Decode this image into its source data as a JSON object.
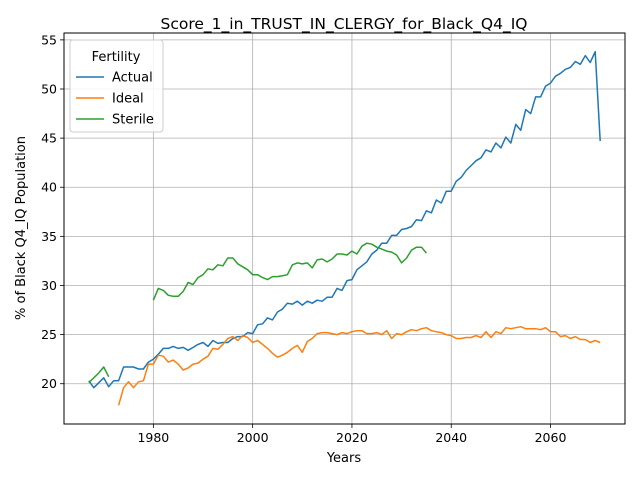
{
  "chart_data": {
    "type": "line",
    "title": "Score_1_in_TRUST_IN_CLERGY_for_Black_Q4_IQ",
    "xlabel": "Years",
    "ylabel": "% of Black Q4_IQ Population",
    "xlim": [
      1962,
      2075
    ],
    "ylim": [
      15.9,
      55.7
    ],
    "xticks": [
      1980,
      2000,
      2020,
      2040,
      2060
    ],
    "yticks": [
      20,
      25,
      30,
      35,
      40,
      45,
      50,
      55
    ],
    "grid": true,
    "legend": {
      "title": "Fertility",
      "placement": "top-left"
    },
    "series": [
      {
        "name": "Actual",
        "color": "#1f77b4",
        "x": [
          1967,
          1968,
          1969,
          1970,
          1971,
          1972,
          1973,
          1974,
          1975,
          1976,
          1977,
          1978,
          1979,
          1980,
          1981,
          1982,
          1983,
          1984,
          1985,
          1986,
          1987,
          1988,
          1989,
          1990,
          1991,
          1992,
          1993,
          1994,
          1995,
          1996,
          1997,
          1998,
          1999,
          2000,
          2001,
          2002,
          2003,
          2004,
          2005,
          2006,
          2007,
          2008,
          2009,
          2010,
          2011,
          2012,
          2013,
          2014,
          2015,
          2016,
          2017,
          2018,
          2019,
          2020,
          2021,
          2022,
          2023,
          2024,
          2025,
          2026,
          2027,
          2028,
          2029,
          2030,
          2031,
          2032,
          2033,
          2034,
          2035,
          2036,
          2037,
          2038,
          2039,
          2040,
          2041,
          2042,
          2043,
          2044,
          2045,
          2046,
          2047,
          2048,
          2049,
          2050,
          2051,
          2052,
          2053,
          2054,
          2055,
          2056,
          2057,
          2058,
          2059,
          2060,
          2061,
          2062,
          2063,
          2064,
          2065,
          2066,
          2067,
          2068,
          2069,
          2070
        ],
        "y": [
          20.3,
          19.6,
          20.1,
          20.6,
          19.7,
          20.3,
          20.3,
          21.7,
          21.7,
          21.7,
          21.5,
          21.5,
          22.2,
          22.5,
          23.0,
          23.6,
          23.6,
          23.8,
          23.6,
          23.7,
          23.4,
          23.7,
          24.0,
          24.2,
          23.8,
          24.4,
          24.1,
          24.2,
          24.2,
          24.6,
          24.8,
          24.8,
          25.2,
          25.1,
          26.0,
          26.1,
          26.7,
          26.5,
          27.3,
          27.6,
          28.2,
          28.1,
          28.4,
          28.0,
          28.4,
          28.2,
          28.5,
          28.4,
          28.8,
          28.8,
          29.7,
          29.5,
          30.5,
          30.6,
          31.6,
          32.0,
          32.4,
          33.2,
          33.6,
          34.3,
          34.3,
          35.1,
          35.1,
          35.7,
          35.8,
          36.0,
          36.7,
          36.6,
          37.6,
          37.4,
          38.7,
          38.4,
          39.6,
          39.6,
          40.6,
          41.0,
          41.7,
          42.2,
          42.7,
          43.0,
          43.8,
          43.6,
          44.5,
          44.0,
          45.1,
          44.5,
          46.4,
          45.8,
          47.9,
          47.5,
          49.2,
          49.2,
          50.3,
          50.6,
          51.3,
          51.6,
          52.0,
          52.2,
          52.8,
          52.5,
          53.4,
          52.7,
          53.8,
          44.7
        ]
      },
      {
        "name": "Ideal",
        "color": "#ff7f0e",
        "x": [
          1973,
          1974,
          1975,
          1976,
          1977,
          1978,
          1979,
          1980,
          1981,
          1982,
          1983,
          1984,
          1985,
          1986,
          1987,
          1988,
          1989,
          1990,
          1991,
          1992,
          1993,
          1994,
          1995,
          1996,
          1997,
          1998,
          1999,
          2000,
          2001,
          2002,
          2003,
          2004,
          2005,
          2006,
          2007,
          2008,
          2009,
          2010,
          2011,
          2012,
          2013,
          2014,
          2015,
          2016,
          2017,
          2018,
          2019,
          2020,
          2021,
          2022,
          2023,
          2024,
          2025,
          2026,
          2027,
          2028,
          2029,
          2030,
          2031,
          2032,
          2033,
          2034,
          2035,
          2036,
          2037,
          2038,
          2039,
          2040,
          2041,
          2042,
          2043,
          2044,
          2045,
          2046,
          2047,
          2048,
          2049,
          2050,
          2051,
          2052,
          2053,
          2054,
          2055,
          2056,
          2057,
          2058,
          2059,
          2060,
          2061,
          2062,
          2063,
          2064,
          2065,
          2066,
          2067,
          2068,
          2069,
          2070
        ],
        "y": [
          17.8,
          19.6,
          20.2,
          19.6,
          20.2,
          20.3,
          22.0,
          22.0,
          22.9,
          22.8,
          22.2,
          22.4,
          22.0,
          21.4,
          21.6,
          22.0,
          22.1,
          22.5,
          22.8,
          23.6,
          23.5,
          24.0,
          24.6,
          24.8,
          24.4,
          24.9,
          24.7,
          24.2,
          24.4,
          24.0,
          23.6,
          23.1,
          22.7,
          22.9,
          23.2,
          23.6,
          23.9,
          23.2,
          24.3,
          24.6,
          25.1,
          25.2,
          25.2,
          25.1,
          25.0,
          25.2,
          25.1,
          25.3,
          25.4,
          25.4,
          25.1,
          25.1,
          25.2,
          25.0,
          25.4,
          24.6,
          25.1,
          25.0,
          25.3,
          25.5,
          25.4,
          25.6,
          25.7,
          25.4,
          25.3,
          25.2,
          25.0,
          24.9,
          24.6,
          24.6,
          24.7,
          24.7,
          24.9,
          24.7,
          25.3,
          24.7,
          25.3,
          25.1,
          25.7,
          25.6,
          25.7,
          25.8,
          25.6,
          25.6,
          25.6,
          25.5,
          25.7,
          25.3,
          25.3,
          24.8,
          24.9,
          24.6,
          24.8,
          24.5,
          24.5,
          24.2,
          24.4,
          24.2
        ]
      },
      {
        "name": "Sterile",
        "color": "#2ca02c",
        "x": [
          1967,
          1968,
          1969,
          1970,
          1971,
          1980,
          1981,
          1982,
          1983,
          1984,
          1985,
          1986,
          1987,
          1988,
          1989,
          1990,
          1991,
          1992,
          1993,
          1994,
          1995,
          1996,
          1997,
          1998,
          1999,
          2000,
          2001,
          2002,
          2003,
          2004,
          2005,
          2006,
          2007,
          2008,
          2009,
          2010,
          2011,
          2012,
          2013,
          2014,
          2015,
          2016,
          2017,
          2018,
          2019,
          2020,
          2021,
          2022,
          2023,
          2024,
          2025,
          2026,
          2027,
          2028,
          2029,
          2030,
          2031,
          2032,
          2033,
          2034,
          2035
        ],
        "y": [
          20.1,
          20.6,
          21.1,
          21.7,
          20.7,
          28.5,
          29.7,
          29.5,
          29.0,
          28.9,
          28.9,
          29.4,
          30.3,
          30.1,
          30.8,
          31.1,
          31.7,
          31.6,
          32.1,
          32.0,
          32.8,
          32.8,
          32.2,
          31.9,
          31.6,
          31.1,
          31.1,
          30.8,
          30.6,
          30.9,
          30.9,
          31.0,
          31.1,
          32.1,
          32.3,
          32.2,
          32.3,
          31.8,
          32.6,
          32.7,
          32.4,
          32.7,
          33.2,
          33.2,
          33.1,
          33.5,
          33.2,
          34.0,
          34.3,
          34.2,
          33.9,
          33.7,
          33.5,
          33.4,
          33.1,
          32.3,
          32.8,
          33.6,
          33.9,
          33.9,
          33.3
        ]
      }
    ]
  }
}
